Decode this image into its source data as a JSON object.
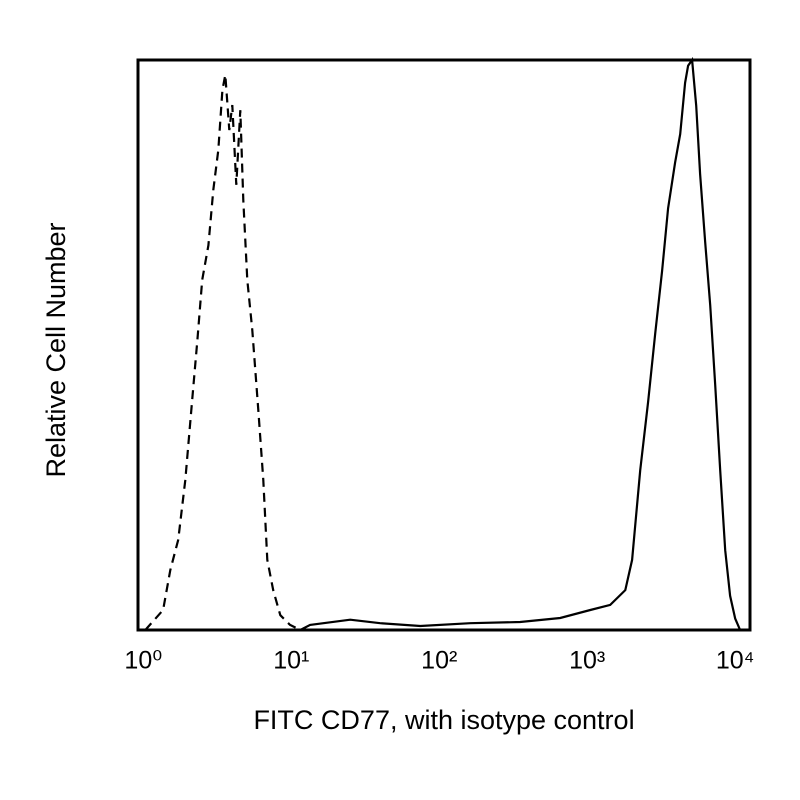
{
  "chart_data": {
    "type": "line",
    "xlabel": "FITC CD77, with isotype control",
    "ylabel": "Relative Cell Number",
    "xscale": "log",
    "xlim": [
      0.92,
      12600
    ],
    "xticks": [
      {
        "value": 1,
        "label": "10⁰"
      },
      {
        "value": 10,
        "label": "10¹"
      },
      {
        "value": 100,
        "label": "10²"
      },
      {
        "value": 1000,
        "label": "10³"
      },
      {
        "value": 10000,
        "label": "10⁴"
      }
    ],
    "ylim": [
      0,
      100
    ],
    "series": [
      {
        "color": "#000000",
        "line_style": "dashed",
        "x": [
          1.03,
          1.36,
          1.52,
          1.72,
          1.92,
          2.14,
          2.32,
          2.5,
          2.75,
          2.97,
          3.21,
          3.42,
          3.58,
          3.81,
          3.99,
          4.25,
          4.52,
          4.74,
          5.04,
          5.45,
          5.98,
          6.47,
          6.88,
          7.55,
          8.43,
          9.8,
          11.5
        ],
        "values": [
          0,
          3.5,
          10.5,
          15.8,
          26.3,
          40.4,
          50.9,
          61.4,
          67.5,
          77.2,
          84.2,
          94.7,
          97.4,
          87.7,
          92.1,
          78.1,
          91.2,
          75.4,
          61.4,
          52.6,
          38.6,
          26.3,
          12.3,
          7,
          2.6,
          0.9,
          0
        ]
      },
      {
        "color": "#000000",
        "line_style": "solid",
        "x": [
          11.5,
          13.4,
          25,
          39.9,
          74.4,
          162,
          352,
          657,
          1050,
          1430,
          1810,
          2010,
          2280,
          2580,
          2880,
          3210,
          3520,
          3930,
          4250,
          4590,
          4810,
          5120,
          5450,
          5800,
          6270,
          6780,
          7330,
          7920,
          8560,
          9250,
          10000,
          10800
        ],
        "values": [
          0,
          0.9,
          1.8,
          1.2,
          0.7,
          1.2,
          1.4,
          2.1,
          3.5,
          4.4,
          7,
          12.3,
          28,
          40,
          52,
          63,
          74,
          82,
          87,
          96,
          99,
          100,
          92,
          80,
          68,
          57,
          43,
          28,
          14,
          6,
          2,
          0
        ]
      }
    ]
  }
}
